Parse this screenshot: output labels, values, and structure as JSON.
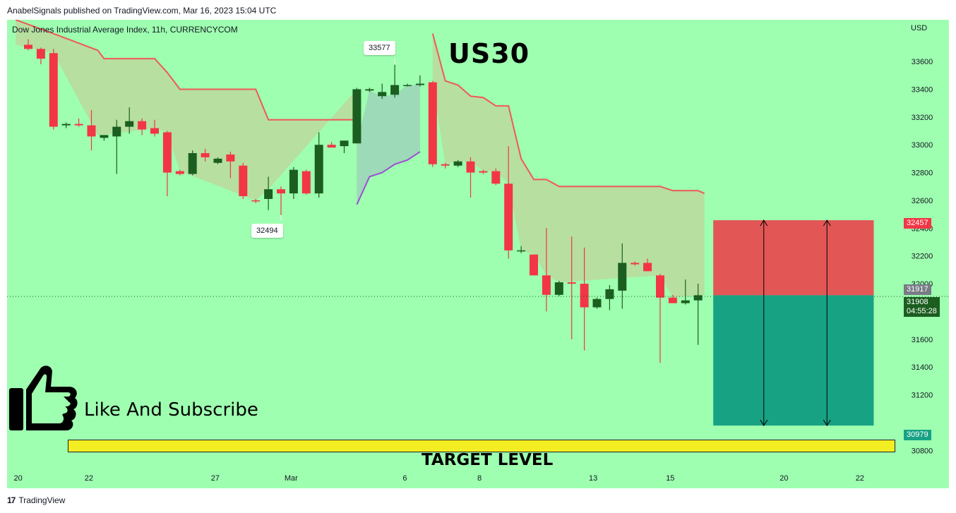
{
  "header": {
    "published": "AnabelSignals published on TradingView.com, Mar 16, 2023 15:04 UTC"
  },
  "chart_data": {
    "type": "candlestick",
    "title": "Dow Jones Industrial Average Index, 11h, CURRENCYCOM",
    "symbol": "US30",
    "currency": "USD",
    "ylim": [
      30700,
      33900
    ],
    "y_ticks": [
      30800,
      31200,
      31400,
      31600,
      32000,
      32200,
      32400,
      32600,
      32800,
      33000,
      33200,
      33400,
      33600
    ],
    "x_ticks": [
      {
        "label": "20",
        "i": -0.8
      },
      {
        "label": "22",
        "i": 4.8
      },
      {
        "label": "27",
        "i": 14.8
      },
      {
        "label": "Mar",
        "i": 20.8
      },
      {
        "label": "6",
        "i": 29.8
      },
      {
        "label": "8",
        "i": 35.7
      },
      {
        "label": "13",
        "i": 44.7
      },
      {
        "label": "15",
        "i": 50.8
      },
      {
        "label": "20",
        "i": 59.8
      },
      {
        "label": "22",
        "i": 65.8
      }
    ],
    "candles": [
      {
        "o": 33720,
        "h": 33760,
        "l": 33680,
        "c": 33690
      },
      {
        "o": 33690,
        "h": 33700,
        "l": 33580,
        "c": 33620
      },
      {
        "o": 33660,
        "h": 33690,
        "l": 33110,
        "c": 33130
      },
      {
        "o": 33140,
        "h": 33160,
        "l": 33120,
        "c": 33150
      },
      {
        "o": 33150,
        "h": 33190,
        "l": 33130,
        "c": 33140
      },
      {
        "o": 33140,
        "h": 33250,
        "l": 32960,
        "c": 33060
      },
      {
        "o": 33050,
        "h": 33070,
        "l": 33030,
        "c": 33070
      },
      {
        "o": 33060,
        "h": 33180,
        "l": 32790,
        "c": 33130
      },
      {
        "o": 33130,
        "h": 33270,
        "l": 33080,
        "c": 33170
      },
      {
        "o": 33170,
        "h": 33190,
        "l": 33070,
        "c": 33110
      },
      {
        "o": 33120,
        "h": 33180,
        "l": 33060,
        "c": 33080
      },
      {
        "o": 33090,
        "h": 33100,
        "l": 32630,
        "c": 32800
      },
      {
        "o": 32810,
        "h": 32820,
        "l": 32780,
        "c": 32790
      },
      {
        "o": 32790,
        "h": 32960,
        "l": 32780,
        "c": 32940
      },
      {
        "o": 32940,
        "h": 32970,
        "l": 32880,
        "c": 32910
      },
      {
        "o": 32870,
        "h": 32910,
        "l": 32860,
        "c": 32900
      },
      {
        "o": 32930,
        "h": 32950,
        "l": 32760,
        "c": 32880
      },
      {
        "o": 32850,
        "h": 32870,
        "l": 32610,
        "c": 32630
      },
      {
        "o": 32600,
        "h": 32610,
        "l": 32580,
        "c": 32595
      },
      {
        "o": 32610,
        "h": 32770,
        "l": 32530,
        "c": 32680
      },
      {
        "o": 32680,
        "h": 32700,
        "l": 32494,
        "c": 32650
      },
      {
        "o": 32650,
        "h": 32840,
        "l": 32610,
        "c": 32820
      },
      {
        "o": 32810,
        "h": 32820,
        "l": 32640,
        "c": 32650
      },
      {
        "o": 32650,
        "h": 33090,
        "l": 32620,
        "c": 33000
      },
      {
        "o": 33000,
        "h": 33020,
        "l": 32980,
        "c": 32980
      },
      {
        "o": 32990,
        "h": 33030,
        "l": 32940,
        "c": 33030
      },
      {
        "o": 33010,
        "h": 33410,
        "l": 33010,
        "c": 33400
      },
      {
        "o": 33390,
        "h": 33410,
        "l": 33380,
        "c": 33400
      },
      {
        "o": 33350,
        "h": 33440,
        "l": 33330,
        "c": 33380
      },
      {
        "o": 33360,
        "h": 33577,
        "l": 33340,
        "c": 33430
      },
      {
        "o": 33430,
        "h": 33440,
        "l": 33420,
        "c": 33430
      },
      {
        "o": 33430,
        "h": 33500,
        "l": 33420,
        "c": 33440
      },
      {
        "o": 33450,
        "h": 33460,
        "l": 32840,
        "c": 32860
      },
      {
        "o": 32860,
        "h": 32870,
        "l": 32830,
        "c": 32850
      },
      {
        "o": 32850,
        "h": 32890,
        "l": 32840,
        "c": 32880
      },
      {
        "o": 32880,
        "h": 32910,
        "l": 32620,
        "c": 32800
      },
      {
        "o": 32810,
        "h": 32820,
        "l": 32790,
        "c": 32800
      },
      {
        "o": 32810,
        "h": 32830,
        "l": 32710,
        "c": 32720
      },
      {
        "o": 32720,
        "h": 32990,
        "l": 32180,
        "c": 32240
      },
      {
        "o": 32240,
        "h": 32270,
        "l": 32220,
        "c": 32240
      },
      {
        "o": 32210,
        "h": 32210,
        "l": 32060,
        "c": 32060
      },
      {
        "o": 32060,
        "h": 32400,
        "l": 31800,
        "c": 31920
      },
      {
        "o": 31920,
        "h": 32020,
        "l": 31910,
        "c": 32010
      },
      {
        "o": 32010,
        "h": 32340,
        "l": 31600,
        "c": 32000
      },
      {
        "o": 32000,
        "h": 32260,
        "l": 31520,
        "c": 31830
      },
      {
        "o": 31830,
        "h": 31900,
        "l": 31820,
        "c": 31890
      },
      {
        "o": 31890,
        "h": 31990,
        "l": 31810,
        "c": 31960
      },
      {
        "o": 31950,
        "h": 32290,
        "l": 31820,
        "c": 32150
      },
      {
        "o": 32150,
        "h": 32160,
        "l": 32130,
        "c": 32140
      },
      {
        "o": 32150,
        "h": 32180,
        "l": 32090,
        "c": 32090
      },
      {
        "o": 32060,
        "h": 32070,
        "l": 31430,
        "c": 31900
      },
      {
        "o": 31900,
        "h": 31920,
        "l": 31860,
        "c": 31860
      },
      {
        "o": 31860,
        "h": 32030,
        "l": 31850,
        "c": 31880
      },
      {
        "o": 31880,
        "h": 32000,
        "l": 31560,
        "c": 31917
      }
    ],
    "supertrend": [
      {
        "dir": "down",
        "points": [
          [
            -1,
            33900
          ],
          [
            2,
            33800
          ],
          [
            5.5,
            33680
          ],
          [
            6,
            33620
          ],
          [
            10,
            33620
          ],
          [
            11,
            33520
          ],
          [
            12,
            33400
          ],
          [
            18,
            33400
          ],
          [
            19,
            33180
          ],
          [
            26,
            33180
          ]
        ]
      },
      {
        "dir": "up",
        "points": [
          [
            26,
            32570
          ],
          [
            27,
            32770
          ],
          [
            28,
            32800
          ],
          [
            29,
            32860
          ],
          [
            30,
            32890
          ],
          [
            31,
            32950
          ]
        ]
      },
      {
        "dir": "down",
        "points": [
          [
            32,
            33800
          ],
          [
            33,
            33460
          ],
          [
            34,
            33430
          ],
          [
            35,
            33350
          ],
          [
            36,
            33340
          ],
          [
            37,
            33280
          ],
          [
            38,
            33280
          ],
          [
            39,
            32900
          ],
          [
            40,
            32750
          ],
          [
            41,
            32750
          ],
          [
            42,
            32700
          ],
          [
            50,
            32700
          ],
          [
            51,
            32670
          ],
          [
            53,
            32670
          ],
          [
            53.5,
            32650
          ]
        ]
      }
    ],
    "annotations": {
      "high_label": "33577",
      "low_label": "32494",
      "current_price": 31908,
      "countdown": "04:55:28",
      "stop_label": "32457",
      "entry_label": "31917",
      "target_label": "30979",
      "risk_zone": {
        "top": 32457,
        "bottom": 31917,
        "i_start": 54.2,
        "i_end": 66.9
      },
      "reward_zone": {
        "top": 31917,
        "bottom": 30979,
        "i_start": 54.2,
        "i_end": 66.9
      },
      "arrow_positions": [
        58.2,
        63.2
      ]
    },
    "texts": {
      "like": "Like And Subscribe",
      "target": "TARGET LEVEL"
    },
    "colors": {
      "background": "#9effb0",
      "bull": "#1b5e20",
      "bear": "#f23645",
      "supertrend_down": "#f05959",
      "supertrend_up": "#9c4fd1",
      "fill_down": "#b7dd9f",
      "fill_up": "#9dd8b7",
      "risk": "#e35656",
      "reward": "#18a284",
      "target_bar": "#f2ee22"
    }
  },
  "footer": {
    "brand": "TradingView"
  }
}
